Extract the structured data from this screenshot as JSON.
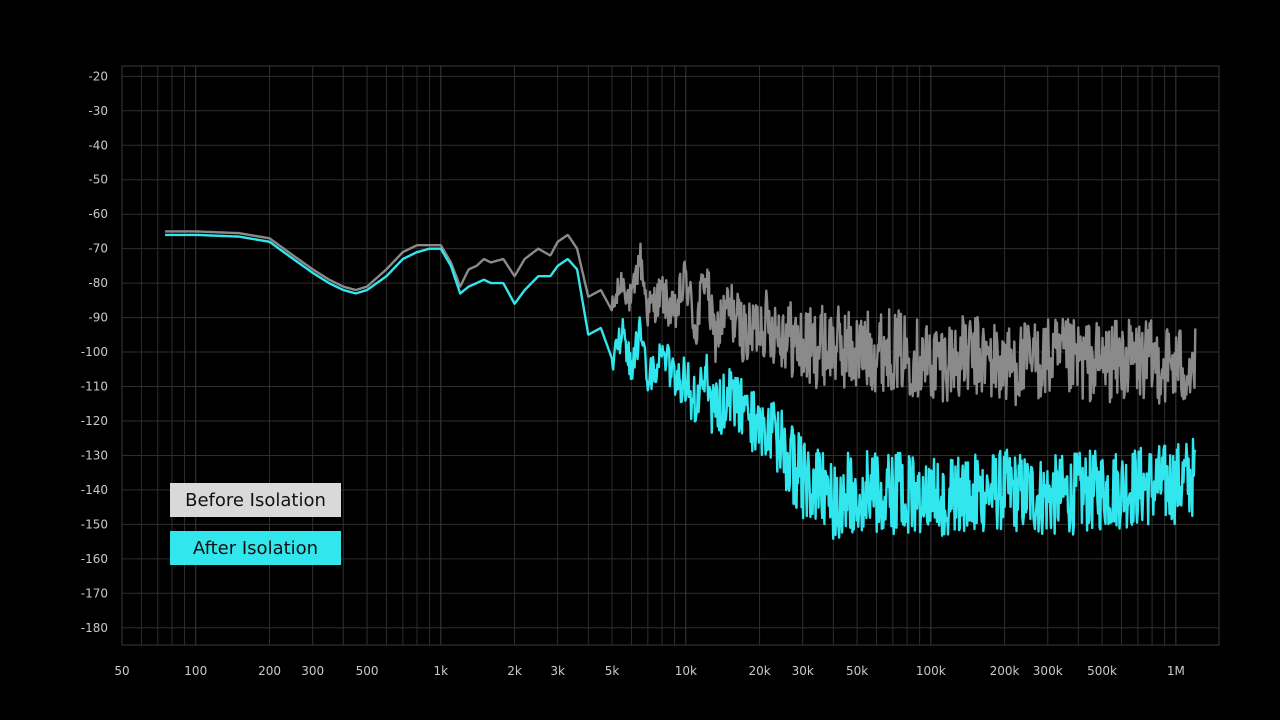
{
  "chart_data": {
    "type": "line",
    "title": "",
    "xlabel": "",
    "ylabel": "",
    "x_scale": "log",
    "xlim": [
      50,
      1500000
    ],
    "ylim": [
      -185,
      -17
    ],
    "grid": true,
    "legend_placement": "bottom-left",
    "x_tick_labels": [
      "50",
      "100",
      "200",
      "300",
      "500",
      "1k",
      "2k",
      "3k",
      "5k",
      "10k",
      "20k",
      "30k",
      "50k",
      "100k",
      "200k",
      "300k",
      "500k",
      "1M"
    ],
    "x_tick_values": [
      50,
      100,
      200,
      300,
      500,
      1000,
      2000,
      3000,
      5000,
      10000,
      20000,
      30000,
      50000,
      100000,
      200000,
      300000,
      500000,
      1000000
    ],
    "y_tick_values": [
      -20,
      -30,
      -40,
      -50,
      -60,
      -70,
      -80,
      -90,
      -100,
      -110,
      -120,
      -130,
      -140,
      -150,
      -160,
      -170,
      -180
    ],
    "series": [
      {
        "name": "Before Isolation",
        "color": "#8a8a8a",
        "x": [
          75,
          100,
          150,
          200,
          250,
          300,
          350,
          400,
          450,
          500,
          600,
          700,
          800,
          900,
          1000,
          1100,
          1200,
          1300,
          1400,
          1500,
          1600,
          1800,
          2000,
          2200,
          2500,
          2800,
          3000,
          3300,
          3600,
          4000,
          4500,
          5000,
          5500,
          6000,
          6500,
          7000,
          8000,
          9000,
          10000,
          11000,
          12000,
          13000,
          15000,
          18000,
          20000,
          25000,
          30000,
          40000,
          50000,
          70000,
          100000,
          150000,
          200000,
          300000,
          500000,
          700000,
          1000000,
          1200000
        ],
        "y": [
          -65,
          -65,
          -65.5,
          -67,
          -72,
          -76,
          -79,
          -81,
          -82,
          -81,
          -76,
          -71,
          -69,
          -69,
          -69,
          -74,
          -81,
          -76,
          -75,
          -73,
          -74,
          -73,
          -78,
          -73,
          -70,
          -72,
          -68,
          -66,
          -70,
          -84,
          -82,
          -88,
          -79,
          -86,
          -72,
          -88,
          -83,
          -90,
          -78,
          -94,
          -76,
          -96,
          -87,
          -96,
          -91,
          -94,
          -99,
          -98,
          -100,
          -99,
          -103,
          -101,
          -104,
          -102,
          -103,
          -102,
          -104,
          -104
        ],
        "noise_from_x": 5000,
        "noise_amplitude_db": 12
      },
      {
        "name": "After Isolation",
        "color": "#32e6ee",
        "x": [
          75,
          100,
          150,
          200,
          250,
          300,
          350,
          400,
          450,
          500,
          600,
          700,
          800,
          900,
          1000,
          1100,
          1200,
          1300,
          1400,
          1500,
          1600,
          1800,
          2000,
          2200,
          2500,
          2800,
          3000,
          3300,
          3600,
          4000,
          4500,
          5000,
          5500,
          6000,
          6500,
          7000,
          8000,
          9000,
          10000,
          11000,
          12000,
          13000,
          15000,
          18000,
          20000,
          25000,
          30000,
          40000,
          50000,
          70000,
          100000,
          150000,
          200000,
          300000,
          500000,
          700000,
          1000000,
          1200000
        ],
        "y": [
          -66,
          -66,
          -66.5,
          -68,
          -73,
          -77,
          -80,
          -82,
          -83,
          -82,
          -78,
          -73,
          -71,
          -70,
          -70,
          -75,
          -83,
          -81,
          -80,
          -79,
          -80,
          -80,
          -86,
          -82,
          -78,
          -78,
          -75,
          -73,
          -76,
          -95,
          -93,
          -102,
          -94,
          -104,
          -95,
          -109,
          -101,
          -108,
          -108,
          -116,
          -106,
          -118,
          -113,
          -119,
          -121,
          -128,
          -137,
          -143,
          -140,
          -141,
          -142,
          -141,
          -140,
          -142,
          -140,
          -139,
          -138,
          -136
        ],
        "noise_from_x": 5000,
        "noise_amplitude_db": 12
      }
    ]
  },
  "legend": {
    "before_label": "Before Isolation",
    "after_label": "After Isolation"
  },
  "colors": {
    "background": "#000000",
    "grid": "#2e2e2e",
    "frame": "#3a3a3a"
  }
}
